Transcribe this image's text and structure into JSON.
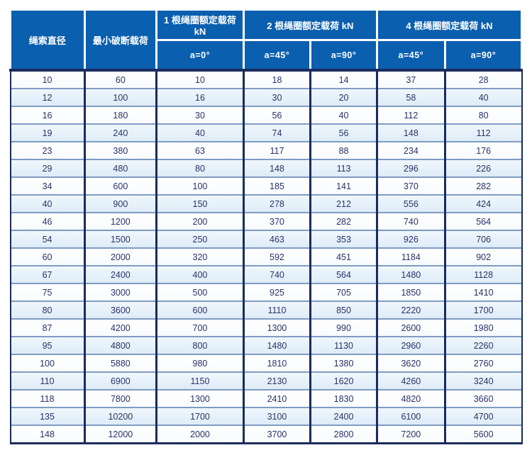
{
  "colors": {
    "header_bg": "#0a5fae",
    "border_navy": "#1a2c5e",
    "row_alt_bg": "#e2eef8",
    "row_separator": "#7f9cc2",
    "body_text": "#2b3268",
    "header_text": "#ffffff"
  },
  "table": {
    "header": {
      "rope_diameter": "绳索直径",
      "min_breaking_load": "最小破断载荷",
      "groups": [
        "1 根绳圈额定载荷 kN",
        "2 根绳圈额定载荷 kN",
        "4 根绳圈额定载荷 kN"
      ],
      "sub_angles": [
        "a=0°",
        "a=45°",
        "a=90°",
        "a=45°",
        "a=90°"
      ]
    },
    "rows": [
      [
        10,
        60,
        10,
        18,
        14,
        37,
        28
      ],
      [
        12,
        100,
        16,
        30,
        20,
        58,
        40
      ],
      [
        16,
        180,
        30,
        56,
        40,
        112,
        80
      ],
      [
        19,
        240,
        40,
        74,
        56,
        148,
        112
      ],
      [
        23,
        380,
        63,
        117,
        88,
        234,
        176
      ],
      [
        29,
        480,
        80,
        148,
        113,
        296,
        226
      ],
      [
        34,
        600,
        100,
        185,
        141,
        370,
        282
      ],
      [
        40,
        900,
        150,
        278,
        212,
        556,
        424
      ],
      [
        46,
        1200,
        200,
        370,
        282,
        740,
        564
      ],
      [
        54,
        1500,
        250,
        463,
        353,
        926,
        706
      ],
      [
        60,
        2000,
        320,
        592,
        451,
        1184,
        902
      ],
      [
        67,
        2400,
        400,
        740,
        564,
        1480,
        1128
      ],
      [
        75,
        3000,
        500,
        925,
        705,
        1850,
        1410
      ],
      [
        80,
        3600,
        600,
        1110,
        850,
        2220,
        1700
      ],
      [
        87,
        4200,
        700,
        1300,
        990,
        2600,
        1980
      ],
      [
        95,
        4800,
        800,
        1480,
        1130,
        2960,
        2260
      ],
      [
        100,
        5880,
        980,
        1810,
        1380,
        3620,
        2760
      ],
      [
        110,
        6900,
        1150,
        2130,
        1620,
        4260,
        3240
      ],
      [
        118,
        7800,
        1300,
        2410,
        1830,
        4820,
        3660
      ],
      [
        135,
        10200,
        1700,
        3100,
        2400,
        6100,
        4700
      ],
      [
        148,
        12000,
        2000,
        3700,
        2800,
        7200,
        5600
      ]
    ]
  }
}
